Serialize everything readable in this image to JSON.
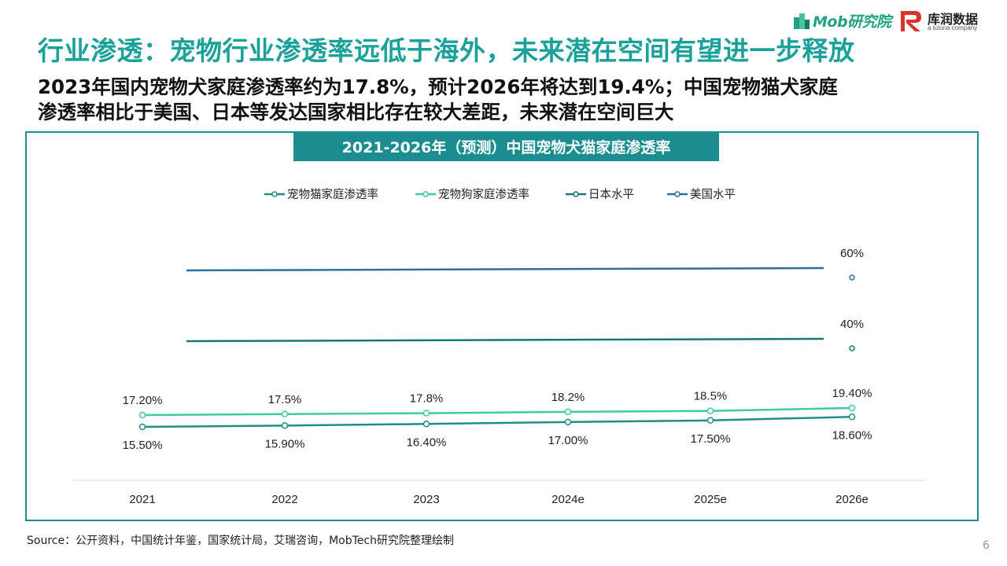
{
  "header": {
    "mob_logo_text": "Mob研究院",
    "partner_logo_name": "库润数据",
    "partner_logo_sub": "a toluna company",
    "title": "行业渗透：宠物行业渗透率远低于海外，未来潜在空间有望进一步释放",
    "subtitle_line1": "2023年国内宠物犬家庭渗透率约为17.8%，预计2026年将达到19.4%；中国宠物猫犬家庭",
    "subtitle_line2": "渗透率相比于美国、日本等发达国家相比存在较大差距，未来潜在空间巨大"
  },
  "colors": {
    "title": "#1aa19a",
    "chart_frame": "#1a8f8f",
    "chart_title_bg": "#1b8d8f",
    "logo_green": "#1fa384",
    "logo_red": "#d8342c"
  },
  "chart_data": {
    "type": "line",
    "title": "2021-2026年（预测）中国宠物犬猫家庭渗透率",
    "categories": [
      "2021",
      "2022",
      "2023",
      "2024e",
      "2025e",
      "2026e"
    ],
    "legend_position": "top",
    "grid": false,
    "series": [
      {
        "name": "宠物猫家庭渗透率",
        "color": "#1f8f84",
        "values": [
          15.5,
          15.9,
          16.4,
          17.0,
          17.5,
          18.6
        ],
        "labels": [
          "15.50%",
          "15.90%",
          "16.40%",
          "17.00%",
          "17.50%",
          "18.60%"
        ],
        "label_position": "below"
      },
      {
        "name": "宠物狗家庭渗透率",
        "color": "#3ec9a7",
        "values": [
          17.2,
          17.5,
          17.8,
          18.2,
          18.5,
          19.4
        ],
        "labels": [
          "17.20%",
          "17.5%",
          "17.8%",
          "18.2%",
          "18.5%",
          "19.40%"
        ],
        "label_position": "above"
      },
      {
        "name": "日本水平",
        "color": "#137878",
        "values": [
          40,
          40,
          40,
          40,
          40,
          40
        ],
        "labels": [
          "",
          "",
          "",
          "",
          "",
          "40%"
        ],
        "label_position": "above"
      },
      {
        "name": "美国水平",
        "color": "#2e6fa3",
        "values": [
          60,
          60,
          60,
          60,
          60,
          60
        ],
        "labels": [
          "",
          "",
          "",
          "",
          "",
          "60%"
        ],
        "label_position": "above"
      }
    ]
  },
  "footer": {
    "source": "Source：公开资料，中国统计年鉴，国家统计局，艾瑞咨询，MobTech研究院整理绘制",
    "page_number": "6"
  }
}
